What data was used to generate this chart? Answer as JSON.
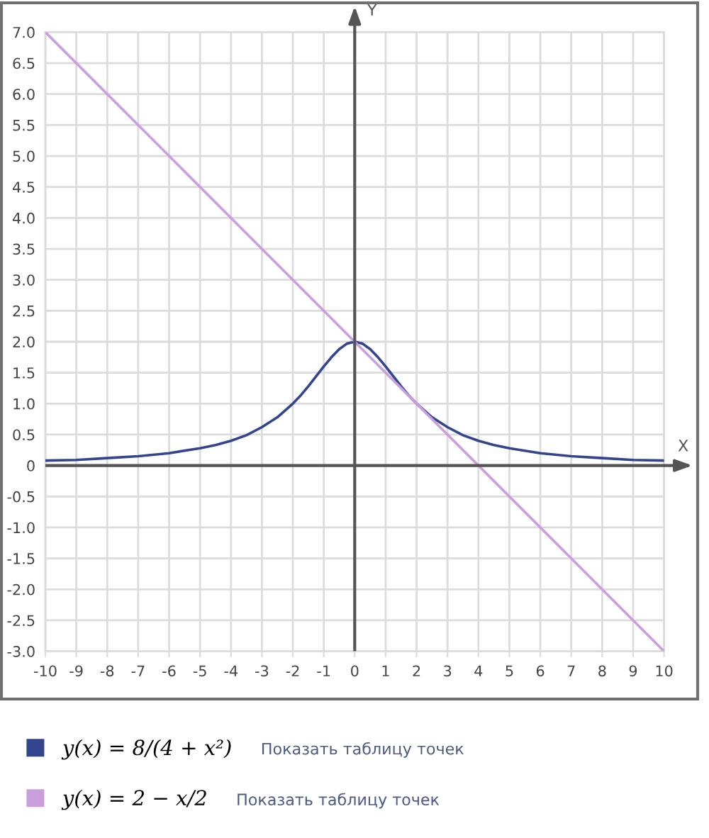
{
  "chart_data": {
    "type": "line",
    "xlabel": "X",
    "ylabel": "Y",
    "xlim": [
      -10,
      10
    ],
    "ylim": [
      -3,
      7
    ],
    "xticks": [
      -10,
      -9,
      -8,
      -7,
      -6,
      -5,
      -4,
      -3,
      -2,
      -1,
      0,
      1,
      2,
      3,
      4,
      5,
      6,
      7,
      8,
      9,
      10
    ],
    "yticks": [
      {
        "value": -3,
        "label": "-3.0"
      },
      {
        "value": -2.5,
        "label": "-2.5"
      },
      {
        "value": -2,
        "label": "-2.0"
      },
      {
        "value": -1.5,
        "label": "-1.5"
      },
      {
        "value": -1,
        "label": "-1.0"
      },
      {
        "value": -0.5,
        "label": "-0.5"
      },
      {
        "value": 0,
        "label": "0"
      },
      {
        "value": 0.5,
        "label": "0.5"
      },
      {
        "value": 1,
        "label": "1.0"
      },
      {
        "value": 1.5,
        "label": "1.5"
      },
      {
        "value": 2,
        "label": "2.0"
      },
      {
        "value": 2.5,
        "label": "2.5"
      },
      {
        "value": 3,
        "label": "3.0"
      },
      {
        "value": 3.5,
        "label": "3.5"
      },
      {
        "value": 4,
        "label": "4.0"
      },
      {
        "value": 4.5,
        "label": "4.5"
      },
      {
        "value": 5,
        "label": "5.0"
      },
      {
        "value": 5.5,
        "label": "5.5"
      },
      {
        "value": 6,
        "label": "6.0"
      },
      {
        "value": 6.5,
        "label": "6.5"
      },
      {
        "value": 7,
        "label": "7.0"
      }
    ],
    "grid": true,
    "legend": "bottom",
    "line_style": "solid",
    "series": [
      {
        "name": "y(x) = 8/(4 + x²)",
        "color": "#34458f",
        "x": [
          -10,
          -9,
          -8,
          -7,
          -6,
          -5,
          -4.5,
          -4,
          -3.5,
          -3,
          -2.5,
          -2,
          -1.75,
          -1.5,
          -1.25,
          -1,
          -0.75,
          -0.5,
          -0.25,
          0,
          0.25,
          0.5,
          0.75,
          1,
          1.25,
          1.5,
          1.75,
          2,
          2.5,
          3,
          3.5,
          4,
          4.5,
          5,
          6,
          7,
          8,
          9,
          10
        ],
        "values": [
          0.08,
          0.09,
          0.12,
          0.15,
          0.2,
          0.28,
          0.33,
          0.4,
          0.49,
          0.62,
          0.78,
          1.0,
          1.13,
          1.28,
          1.44,
          1.6,
          1.75,
          1.88,
          1.97,
          2.0,
          1.97,
          1.88,
          1.75,
          1.6,
          1.44,
          1.28,
          1.13,
          1.0,
          0.78,
          0.62,
          0.49,
          0.4,
          0.33,
          0.28,
          0.2,
          0.15,
          0.12,
          0.09,
          0.08
        ]
      },
      {
        "name": "y(x) = 2 − x/2",
        "color": "#c9a0dd",
        "x": [
          -10,
          10
        ],
        "values": [
          7,
          -3
        ]
      }
    ],
    "annotations": [
      "Показать таблицу точек",
      "Показать таблицу точек"
    ]
  }
}
